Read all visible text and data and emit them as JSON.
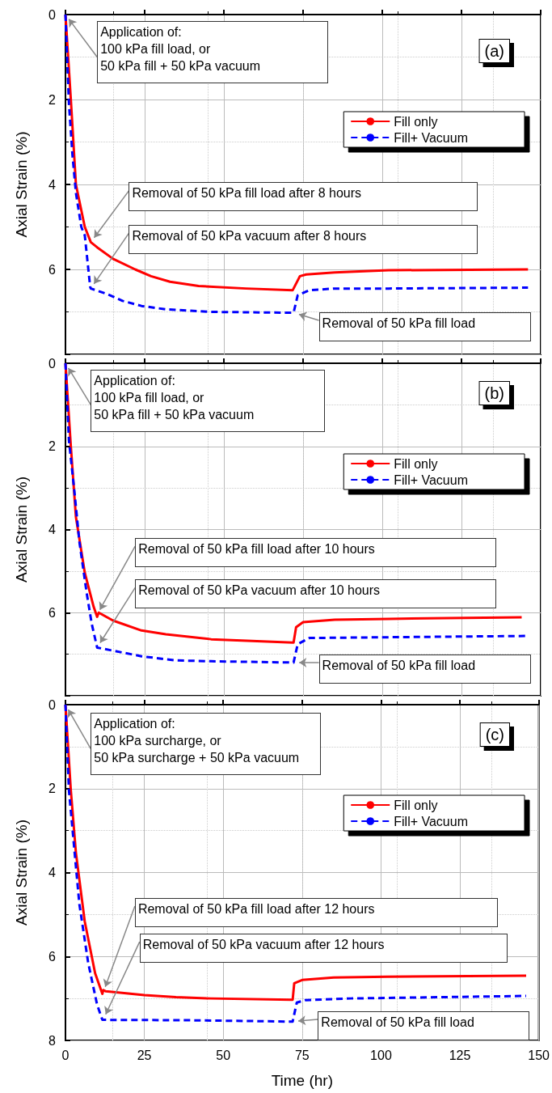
{
  "chart_data": [
    {
      "type": "line",
      "ylabel": "Axial Strain (%)",
      "xlim": [
        0,
        150
      ],
      "xticks": [
        0,
        25,
        50,
        75,
        100,
        125,
        150
      ],
      "ylim": [
        8,
        0
      ],
      "yticks": [
        0,
        2,
        4,
        6,
        {
          "value": 8,
          "label": null
        }
      ],
      "tick_labels": "y",
      "grid": true,
      "legend": "top right",
      "marker": "none",
      "annotations": [
        {
          "text": "Application of:\n100 kPa fill load, or\n50 kPa fill + 50 kPa vacuum",
          "x": 0,
          "y": 0
        },
        {
          "text": "Removal of 50 kPa fill load after 8 hours",
          "x": 8,
          "y": 5.36
        },
        {
          "text": "Removal of 50 kPa vacuum after 8 hours",
          "x": 8,
          "y": 6.45
        },
        {
          "text": "Removal of 50 kPa fill load",
          "x": 72,
          "y": 7.02
        },
        "(a)"
      ],
      "series": [
        {
          "name": "Fill only",
          "color": "#ff0000",
          "line_style": "solid",
          "x": [
            0,
            1.7,
            3.3,
            6.1,
            8,
            10,
            15,
            22,
            27,
            33,
            42,
            57,
            71.7,
            72,
            74,
            76,
            85,
            102,
            146
          ],
          "values": [
            0,
            2.0,
            4.0,
            5.0,
            5.36,
            5.48,
            5.75,
            6.0,
            6.16,
            6.29,
            6.39,
            6.45,
            6.49,
            6.45,
            6.16,
            6.12,
            6.07,
            6.02,
            6.0
          ]
        },
        {
          "name": "Fill+ Vacuum",
          "color": "#0000ff",
          "line_style": "dashed",
          "x": [
            0,
            1.1,
            2.2,
            3.3,
            5,
            6.1,
            7.8,
            8,
            12.8,
            18,
            24,
            31.7,
            46,
            71.7,
            72,
            73.3,
            77,
            85,
            102,
            146
          ],
          "values": [
            0,
            2.1,
            3.3,
            4.2,
            5.0,
            5.2,
            6.41,
            6.45,
            6.57,
            6.74,
            6.86,
            6.94,
            7.0,
            7.02,
            7.02,
            6.61,
            6.49,
            6.45,
            6.45,
            6.43
          ]
        }
      ]
    },
    {
      "type": "line",
      "ylabel": "Axial Strain (%)",
      "xlim": [
        0,
        150
      ],
      "xticks": [
        0,
        25,
        50,
        75,
        100,
        125,
        150
      ],
      "ylim": [
        8,
        0
      ],
      "yticks": [
        0,
        2,
        4,
        6,
        {
          "value": 8,
          "label": null
        }
      ],
      "tick_labels": "y",
      "grid": true,
      "legend": "top right",
      "marker": "none",
      "annotations": [
        {
          "text": "Application of:\n100 kPa fill load, or\n50 kPa fill + 50 kPa vacuum",
          "x": 0,
          "y": 0
        },
        {
          "text": "Removal of 50 kPa fill load after 10 hours",
          "x": 10,
          "y": 6.05
        },
        {
          "text": "Removal of 50 kPa vacuum after 10 hours",
          "x": 10,
          "y": 6.84
        },
        {
          "text": "Removal of 50 kPa fill load",
          "x": 72,
          "y": 7.2
        },
        "(b)"
      ],
      "series": [
        {
          "name": "Fill only",
          "color": "#ff0000",
          "line_style": "solid",
          "x": [
            0,
            1.7,
            3.3,
            6.1,
            8.9,
            10,
            10.5,
            15,
            24,
            31.7,
            46,
            71.7,
            72,
            72.8,
            75,
            85,
            102,
            144
          ],
          "values": [
            0,
            2.0,
            3.7,
            5.04,
            5.86,
            6.1,
            6.0,
            6.19,
            6.43,
            6.52,
            6.64,
            6.72,
            6.72,
            6.35,
            6.23,
            6.17,
            6.15,
            6.11
          ]
        },
        {
          "name": "Fill+ Vacuum",
          "color": "#0000ff",
          "line_style": "dashed",
          "x": [
            0,
            1.1,
            2.8,
            4.4,
            6.7,
            8.3,
            10,
            16,
            24,
            35,
            46,
            71.7,
            72,
            73.3,
            77,
            90.5,
            146
          ],
          "values": [
            0,
            1.86,
            3.07,
            4.3,
            5.53,
            6.27,
            6.84,
            6.93,
            7.05,
            7.15,
            7.17,
            7.2,
            7.2,
            6.76,
            6.61,
            6.6,
            6.56
          ]
        }
      ]
    },
    {
      "type": "line",
      "xlabel": "Time (hr)",
      "ylabel": "Axial Strain (%)",
      "xlim": [
        0,
        150
      ],
      "xticks": [
        0,
        25,
        50,
        75,
        100,
        125,
        150
      ],
      "ylim": [
        8,
        0
      ],
      "yticks": [
        0,
        2,
        4,
        6,
        8
      ],
      "grid": true,
      "legend": "top right",
      "marker": "none",
      "annotations": [
        {
          "text": "Application of:\n100 kPa surcharge, or\n50 kPa surcharge + 50 kPa vacuum",
          "x": 0,
          "y": 0
        },
        {
          "text": "Removal of 50 kPa fill load after 12 hours",
          "x": 12,
          "y": 6.85
        },
        {
          "text": "Removal of 50 kPa vacuum after 12 hours",
          "x": 12,
          "y": 7.5
        },
        {
          "text": "Removal of 50 kPa fill load",
          "x": 72,
          "y": 7.55
        },
        "(c)"
      ],
      "series": [
        {
          "name": "Fill only",
          "color": "#ff0000",
          "line_style": "solid",
          "x": [
            0,
            1.7,
            3.3,
            6.1,
            9.4,
            11.7,
            12,
            12.8,
            25,
            35,
            46,
            71.7,
            72,
            72.5,
            75,
            85,
            102,
            146
          ],
          "values": [
            0,
            2.04,
            3.52,
            5.16,
            6.4,
            6.89,
            6.8,
            6.83,
            6.92,
            6.97,
            7.0,
            7.03,
            7.03,
            6.64,
            6.56,
            6.5,
            6.48,
            6.46
          ]
        },
        {
          "name": "Fill+ Vacuum",
          "color": "#0000ff",
          "line_style": "dashed",
          "x": [
            0,
            1.1,
            2.8,
            4.4,
            7.2,
            10,
            11.7,
            40,
            70,
            72,
            73.3,
            76,
            90.5,
            146
          ],
          "values": [
            0,
            2.04,
            3.44,
            4.75,
            6.15,
            7.14,
            7.51,
            7.52,
            7.55,
            7.55,
            7.1,
            7.04,
            7.0,
            6.94
          ]
        }
      ]
    }
  ]
}
